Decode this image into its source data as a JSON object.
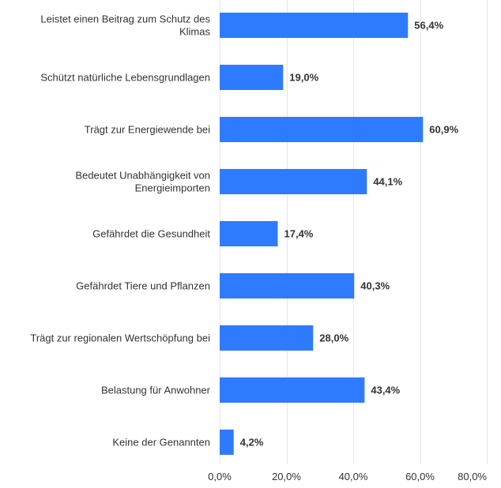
{
  "chart_data": {
    "type": "bar",
    "orientation": "horizontal",
    "categories": [
      [
        "Leistet einen Beitrag zum Schutz des",
        "Klimas"
      ],
      [
        "Schützt natürliche Lebensgrundlagen"
      ],
      [
        "Trägt zur Energiewende bei"
      ],
      [
        "Bedeutet Unabhängigkeit von",
        "Energieimporten"
      ],
      [
        "Gefährdet die Gesundheit"
      ],
      [
        "Gefährdet Tiere und Pflanzen"
      ],
      [
        "Trägt zur regionalen Wertschöpfung bei"
      ],
      [
        "Belastung für Anwohner"
      ],
      [
        "Keine der Genannten"
      ]
    ],
    "values": [
      56.4,
      19.0,
      60.9,
      44.1,
      17.4,
      40.3,
      28.0,
      43.4,
      4.2
    ],
    "value_labels": [
      "56,4%",
      "19,0%",
      "60,9%",
      "44,1%",
      "17,4%",
      "40,3%",
      "28,0%",
      "43,4%",
      "4,2%"
    ],
    "x_ticks": [
      0,
      20,
      40,
      60,
      80
    ],
    "x_tick_labels": [
      "0,0%",
      "20,0%",
      "40,0%",
      "60,0%",
      "80,0%"
    ],
    "xlim": [
      0,
      80
    ],
    "grid": true,
    "bar_color": "#2f7bff",
    "title": "",
    "xlabel": "",
    "ylabel": ""
  }
}
